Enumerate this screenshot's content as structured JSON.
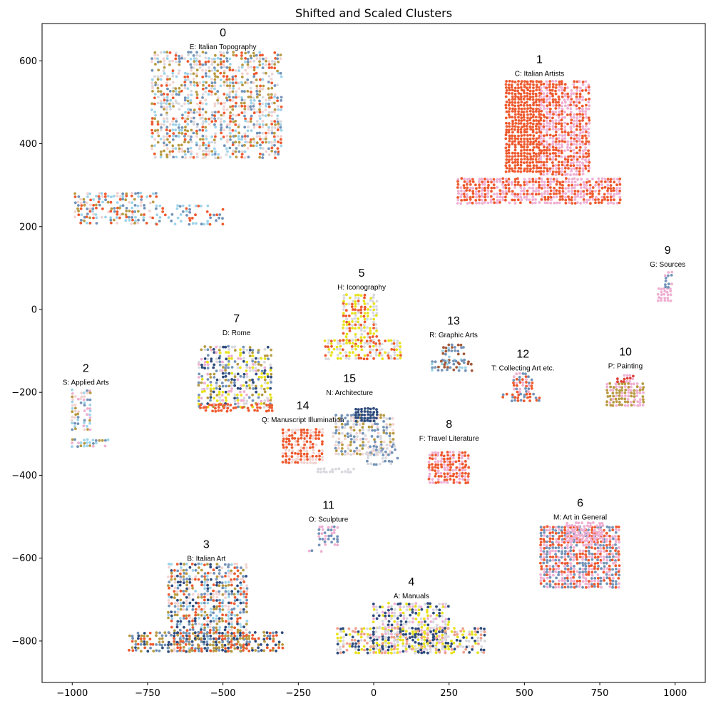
{
  "chart_data": {
    "type": "scatter",
    "title": "Shifted and Scaled Clusters",
    "xlabel": "",
    "ylabel": "",
    "xlim": [
      -1100,
      1100
    ],
    "ylim": [
      -900,
      690
    ],
    "grid": false,
    "legend": "none",
    "xticks": [
      -1000,
      -750,
      -500,
      -250,
      0,
      250,
      500,
      750,
      1000
    ],
    "xtick_labels": [
      "−1000",
      "−750",
      "−500",
      "−250",
      "0",
      "250",
      "500",
      "750",
      "1000"
    ],
    "yticks": [
      600,
      400,
      200,
      0,
      -200,
      -400,
      -600,
      -800
    ],
    "ytick_labels": [
      "600",
      "400",
      "200",
      "0",
      "−200",
      "−400",
      "−600",
      "−800"
    ],
    "palette": {
      "orange_red": "#ee5a2f",
      "pink": "#efb0d2",
      "navy": "#2e4b7c",
      "steel_blue": "#7393b8",
      "light_blue": "#9dd3ea",
      "yellow": "#e8e21e",
      "olive": "#b89a42",
      "light_gray": "#d8d8de",
      "pale_pink": "#f2d3d1",
      "brown": "#a45a3a",
      "salmon": "#f0a08c",
      "red": "#e0403a"
    },
    "clusters": [
      {
        "id": "0",
        "label": "E: Italian Topography",
        "label_x": -500,
        "label_y": 635,
        "regions": [
          {
            "x0": -735,
            "x1": -300,
            "y0": 360,
            "y1": 620,
            "colors": [
              "orange_red",
              "pale_pink",
              "light_blue",
              "olive",
              "steel_blue",
              "light_gray"
            ],
            "density": 0.55
          },
          {
            "x0": -990,
            "x1": -720,
            "y0": 205,
            "y1": 280,
            "colors": [
              "orange_red",
              "light_blue",
              "steel_blue",
              "olive",
              "pale_pink"
            ],
            "density": 0.5
          },
          {
            "x0": -720,
            "x1": -500,
            "y0": 205,
            "y1": 250,
            "colors": [
              "orange_red",
              "steel_blue",
              "light_blue"
            ],
            "density": 0.3
          }
        ]
      },
      {
        "id": "1",
        "label": "C: Italian Artists",
        "label_x": 550,
        "label_y": 570,
        "regions": [
          {
            "x0": 440,
            "x1": 555,
            "y0": 330,
            "y1": 550,
            "colors": [
              "orange_red"
            ],
            "density": 0.9
          },
          {
            "x0": 555,
            "x1": 715,
            "y0": 320,
            "y1": 550,
            "colors": [
              "pink",
              "orange_red"
            ],
            "density": 0.85
          },
          {
            "x0": 280,
            "x1": 820,
            "y0": 250,
            "y1": 315,
            "colors": [
              "pink",
              "orange_red"
            ],
            "density": 0.85
          }
        ]
      },
      {
        "id": "2",
        "label": "S: Applied Arts",
        "label_x": -955,
        "label_y": -175,
        "regions": [
          {
            "x0": -1000,
            "x1": -940,
            "y0": -290,
            "y1": -195,
            "colors": [
              "light_blue",
              "olive",
              "pink",
              "steel_blue",
              "pale_pink"
            ],
            "density": 0.6
          },
          {
            "x0": -1000,
            "x1": -875,
            "y0": -335,
            "y1": -315,
            "colors": [
              "olive",
              "light_blue",
              "steel_blue",
              "pink"
            ],
            "density": 0.6
          }
        ]
      },
      {
        "id": "3",
        "label": "B: Italian Art",
        "label_x": -555,
        "label_y": -600,
        "regions": [
          {
            "x0": -680,
            "x1": -420,
            "y0": -830,
            "y1": -615,
            "colors": [
              "olive",
              "orange_red",
              "steel_blue",
              "navy",
              "pale_pink",
              "light_blue"
            ],
            "density": 0.6
          },
          {
            "x0": -810,
            "x1": -300,
            "y0": -830,
            "y1": -780,
            "colors": [
              "navy",
              "olive",
              "orange_red",
              "steel_blue"
            ],
            "density": 0.6
          }
        ]
      },
      {
        "id": "4",
        "label": "A: Manuals",
        "label_x": 125,
        "label_y": -690,
        "regions": [
          {
            "x0": 0,
            "x1": 250,
            "y0": -830,
            "y1": -710,
            "colors": [
              "yellow",
              "light_gray",
              "navy",
              "pink"
            ],
            "density": 0.65
          },
          {
            "x0": -120,
            "x1": 375,
            "y0": -830,
            "y1": -770,
            "colors": [
              "navy",
              "light_gray",
              "yellow",
              "salmon"
            ],
            "density": 0.6
          }
        ]
      },
      {
        "id": "5",
        "label": "H: Iconography",
        "label_x": -40,
        "label_y": 55,
        "regions": [
          {
            "x0": -100,
            "x1": 15,
            "y0": -85,
            "y1": 35,
            "colors": [
              "light_gray",
              "yellow",
              "orange_red"
            ],
            "density": 0.65
          },
          {
            "x0": -160,
            "x1": 95,
            "y0": -120,
            "y1": -75,
            "colors": [
              "yellow",
              "light_gray",
              "orange_red"
            ],
            "density": 0.65
          }
        ]
      },
      {
        "id": "6",
        "label": "M: Art in General",
        "label_x": 685,
        "label_y": -500,
        "regions": [
          {
            "x0": 555,
            "x1": 820,
            "y0": -670,
            "y1": -525,
            "colors": [
              "orange_red",
              "steel_blue",
              "pink"
            ],
            "density": 0.85
          },
          {
            "x0": 640,
            "x1": 760,
            "y0": -560,
            "y1": -515,
            "colors": [
              "pink"
            ],
            "density": 0.8
          }
        ]
      },
      {
        "id": "7",
        "label": "D: Rome",
        "label_x": -455,
        "label_y": -55,
        "regions": [
          {
            "x0": -580,
            "x1": -340,
            "y0": -235,
            "y1": -90,
            "colors": [
              "steel_blue",
              "light_gray",
              "yellow",
              "olive",
              "pink",
              "navy"
            ],
            "density": 0.55
          },
          {
            "x0": -575,
            "x1": -335,
            "y0": -250,
            "y1": -230,
            "colors": [
              "orange_red"
            ],
            "density": 0.5
          }
        ]
      },
      {
        "id": "8",
        "label": "F: Travel Literature",
        "label_x": 250,
        "label_y": -310,
        "regions": [
          {
            "x0": 185,
            "x1": 320,
            "y0": -420,
            "y1": -345,
            "colors": [
              "orange_red",
              "pink"
            ],
            "density": 0.85
          }
        ]
      },
      {
        "id": "9",
        "label": "G: Sources",
        "label_x": 975,
        "label_y": 110,
        "regions": [
          {
            "x0": 945,
            "x1": 990,
            "y0": 20,
            "y1": 50,
            "colors": [
              "pink"
            ],
            "density": 0.85
          },
          {
            "x0": 968,
            "x1": 990,
            "y0": 50,
            "y1": 90,
            "colors": [
              "pink",
              "steel_blue"
            ],
            "density": 0.8
          }
        ]
      },
      {
        "id": "10",
        "label": "P: Painting",
        "label_x": 835,
        "label_y": -135,
        "regions": [
          {
            "x0": 775,
            "x1": 900,
            "y0": -235,
            "y1": -180,
            "colors": [
              "pink",
              "olive"
            ],
            "density": 0.85
          },
          {
            "x0": 810,
            "x1": 860,
            "y0": -180,
            "y1": -160,
            "colors": [
              "red",
              "pink"
            ],
            "density": 0.8
          }
        ]
      },
      {
        "id": "11",
        "label": "O: Sculpture",
        "label_x": -150,
        "label_y": -505,
        "regions": [
          {
            "x0": -180,
            "x1": -115,
            "y0": -570,
            "y1": -525,
            "colors": [
              "pink",
              "steel_blue"
            ],
            "density": 0.7
          },
          {
            "x0": -215,
            "x1": -175,
            "y0": -590,
            "y1": -583,
            "colors": [
              "steel_blue",
              "pink"
            ],
            "density": 0.5
          }
        ]
      },
      {
        "id": "12",
        "label": "T: Collecting Art etc.",
        "label_x": 495,
        "label_y": -140,
        "regions": [
          {
            "x0": 465,
            "x1": 525,
            "y0": -205,
            "y1": -155,
            "colors": [
              "steel_blue",
              "orange_red",
              "pink"
            ],
            "density": 0.75
          },
          {
            "x0": 430,
            "x1": 555,
            "y0": -225,
            "y1": -205,
            "colors": [
              "orange_red",
              "steel_blue"
            ],
            "density": 0.7
          }
        ]
      },
      {
        "id": "13",
        "label": "R: Graphic Arts",
        "label_x": 265,
        "label_y": -60,
        "regions": [
          {
            "x0": 230,
            "x1": 300,
            "y0": -135,
            "y1": -85,
            "colors": [
              "brown",
              "light_blue",
              "steel_blue"
            ],
            "density": 0.6
          },
          {
            "x0": 195,
            "x1": 325,
            "y0": -150,
            "y1": -125,
            "colors": [
              "brown",
              "light_blue",
              "steel_blue"
            ],
            "density": 0.6
          }
        ]
      },
      {
        "id": "14",
        "label": "Q: Manuscript Illumination",
        "label_x": -235,
        "label_y": -265,
        "regions": [
          {
            "x0": -300,
            "x1": -165,
            "y0": -375,
            "y1": -290,
            "colors": [
              "orange_red",
              "pale_pink"
            ],
            "density": 0.8
          },
          {
            "x0": -185,
            "x1": -60,
            "y0": -395,
            "y1": -385,
            "colors": [
              "light_gray"
            ],
            "density": 0.7
          }
        ]
      },
      {
        "id": "15",
        "label": "N: Architecture",
        "label_x": -80,
        "label_y": -200,
        "regions": [
          {
            "x0": -135,
            "x1": 65,
            "y0": -355,
            "y1": -255,
            "colors": [
              "light_gray",
              "pale_pink",
              "steel_blue",
              "olive"
            ],
            "density": 0.6
          },
          {
            "x0": -60,
            "x1": 15,
            "y0": -270,
            "y1": -240,
            "colors": [
              "navy"
            ],
            "density": 0.9
          },
          {
            "x0": -20,
            "x1": 85,
            "y0": -375,
            "y1": -330,
            "colors": [
              "steel_blue",
              "light_gray"
            ],
            "density": 0.5
          }
        ]
      }
    ]
  }
}
